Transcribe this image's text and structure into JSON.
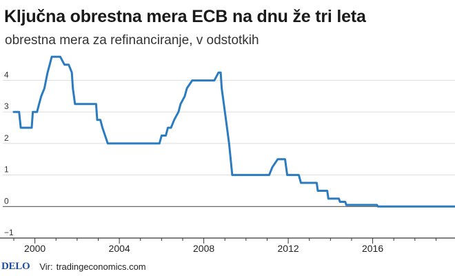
{
  "header": {
    "title": "Ključna obrestna mera ECB na dnu že tri leta",
    "subtitle": "obrestna mera za refinanciranje, v odstotkih"
  },
  "footer": {
    "logo": "DELO",
    "source_label": "Vir:",
    "source": "tradingeconomics.com"
  },
  "colors": {
    "line": "#2a7bbf",
    "axis": "#333333",
    "grid": "#dddddd"
  },
  "chart_data": {
    "type": "line",
    "title": "Ključna obrestna mera ECB na dnu že tri leta",
    "subtitle": "obrestna mera za refinanciranje, v odstotkih",
    "xlabel": "",
    "ylabel": "",
    "xlim": [
      1999.0,
      2019.9
    ],
    "ylim": [
      -1,
      4.8
    ],
    "x_ticks": [
      2000,
      2004,
      2008,
      2012,
      2016
    ],
    "x_tick_labels": [
      "2000",
      "2004",
      "2008",
      "2012",
      "2016"
    ],
    "y_ticks": [
      -1,
      0,
      1,
      2,
      3,
      4
    ],
    "y_tick_labels": [
      "−1",
      "0",
      "1",
      "2",
      "3",
      "4"
    ],
    "grid": false,
    "series": [
      {
        "name": "obrestna mera za refinanciranje",
        "x": [
          1999.0,
          1999.25,
          1999.33,
          1999.85,
          1999.9,
          2000.1,
          2000.2,
          2000.3,
          2000.45,
          2000.6,
          2000.7,
          2000.8,
          2001.2,
          2001.4,
          2001.6,
          2001.75,
          2001.8,
          2001.9,
          2002.9,
          2002.95,
          2003.1,
          2003.2,
          2003.45,
          2005.9,
          2006.0,
          2006.2,
          2006.3,
          2006.45,
          2006.6,
          2006.8,
          2006.9,
          2007.1,
          2007.2,
          2007.45,
          2008.5,
          2008.7,
          2008.8,
          2008.85,
          2008.95,
          2009.1,
          2009.2,
          2009.35,
          2011.1,
          2011.25,
          2011.5,
          2011.85,
          2011.95,
          2012.5,
          2012.6,
          2013.35,
          2013.4,
          2013.85,
          2013.9,
          2014.4,
          2014.45,
          2014.7,
          2014.75,
          2016.2,
          2016.25,
          2019.9
        ],
        "y": [
          3.0,
          3.0,
          2.5,
          2.5,
          3.0,
          3.0,
          3.25,
          3.5,
          3.75,
          4.25,
          4.5,
          4.75,
          4.75,
          4.5,
          4.5,
          4.25,
          3.75,
          3.25,
          3.25,
          2.75,
          2.75,
          2.5,
          2.0,
          2.0,
          2.25,
          2.25,
          2.5,
          2.5,
          2.75,
          3.0,
          3.25,
          3.5,
          3.75,
          4.0,
          4.0,
          4.25,
          4.25,
          3.75,
          3.25,
          2.5,
          2.0,
          1.0,
          1.0,
          1.25,
          1.5,
          1.5,
          1.0,
          1.0,
          0.75,
          0.75,
          0.5,
          0.5,
          0.25,
          0.25,
          0.15,
          0.15,
          0.05,
          0.05,
          0.0,
          0.0
        ]
      }
    ]
  }
}
